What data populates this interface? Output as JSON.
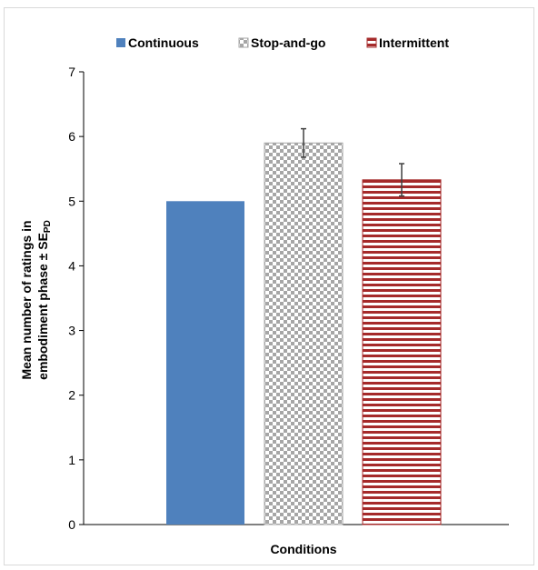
{
  "chart_data": {
    "type": "bar",
    "categories": [
      "Continuous",
      "Stop-and-go",
      "Intermittent"
    ],
    "values": [
      5.0,
      5.9,
      5.33
    ],
    "errors": [
      0,
      0.22,
      0.25
    ],
    "xlabel": "Conditions",
    "ylabel_line1": "Mean number of ratings in",
    "ylabel_line2_main": "embodiment phase ± SE",
    "ylabel_subscript": "PD",
    "ylim": [
      0,
      7
    ],
    "yticks": [
      "0",
      "1",
      "2",
      "3",
      "4",
      "5",
      "6",
      "7"
    ],
    "legend_position": "top",
    "grid": false,
    "colors": [
      "#4f81bd",
      "#a6a6a6",
      "#a52a2a"
    ]
  }
}
